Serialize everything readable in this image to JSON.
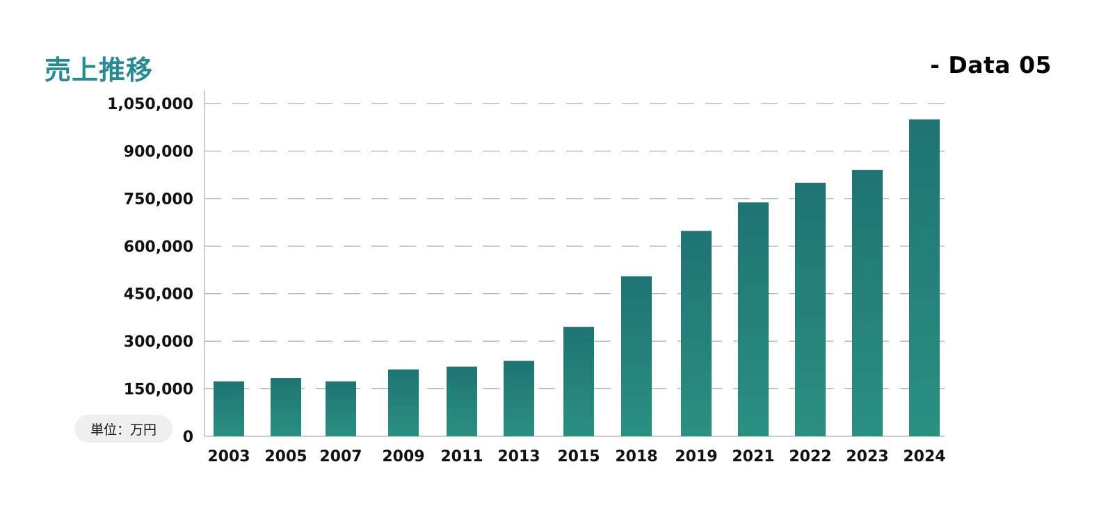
{
  "header": {
    "title": "売上推移",
    "data_tag": "- Data 05"
  },
  "unit_label": "単位：万円",
  "colors": {
    "title": "#2a8a91",
    "bar_top": "#1f7374",
    "bar_bottom": "#2a9080",
    "grid": "#9a9a9a",
    "axis": "#bdbdbd"
  },
  "chart_data": {
    "type": "bar",
    "title": "売上推移",
    "xlabel": "",
    "ylabel": "",
    "unit": "単位：万円",
    "categories": [
      "2003",
      "2005",
      "2007",
      "2009",
      "2011",
      "2013",
      "2015",
      "2018",
      "2019",
      "2021",
      "2022",
      "2023",
      "2024"
    ],
    "values": [
      173000,
      184000,
      173000,
      211000,
      220000,
      238000,
      345000,
      505000,
      648000,
      738000,
      800000,
      840000,
      1000000
    ],
    "ylim": [
      0,
      1050000
    ],
    "yticks": [
      0,
      150000,
      300000,
      450000,
      600000,
      750000,
      900000,
      1050000
    ],
    "ytick_labels": [
      "0",
      "150,000",
      "300,000",
      "450,000",
      "600,000",
      "750,000",
      "900,000",
      "1,050,000"
    ],
    "grid": "horizontal-dashed"
  }
}
